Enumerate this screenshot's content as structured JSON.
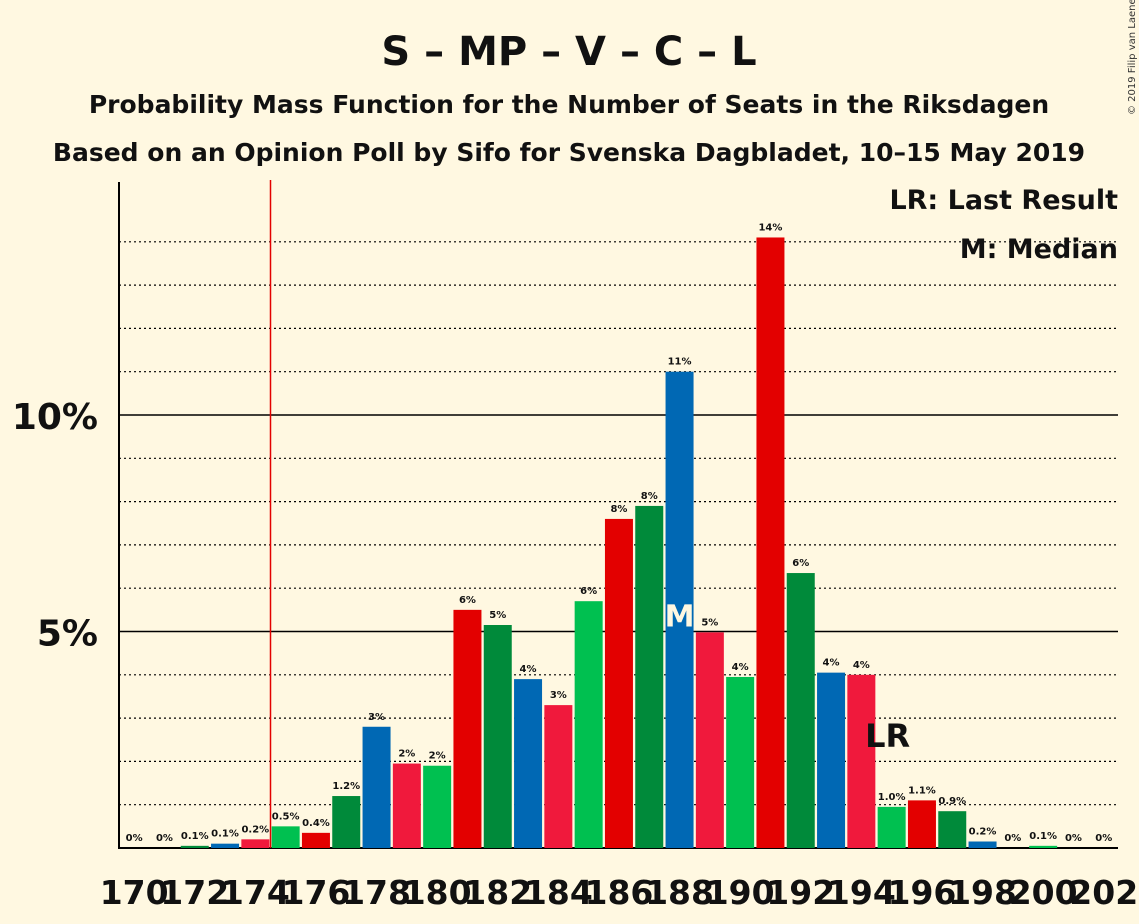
{
  "chart_data": {
    "type": "bar",
    "title": "S – MP – V – C – L",
    "subtitle1": "Probability Mass Function for the Number of Seats in the Riksdagen",
    "subtitle2": "Based on an Opinion Poll by Sifo for Svenska Dagbladet, 10–15 May 2019",
    "copyright": "© 2019 Filip van Laenen",
    "legend_lr": "LR: Last Result",
    "legend_m": "M: Median",
    "legend_position": "top-right",
    "median_marker": "M",
    "last_result_marker": "LR",
    "x": [
      170,
      171,
      172,
      173,
      174,
      175,
      176,
      177,
      178,
      179,
      180,
      181,
      182,
      183,
      184,
      185,
      186,
      187,
      188,
      189,
      190,
      191,
      192,
      193,
      194,
      195,
      196,
      197,
      198,
      199,
      200,
      201,
      202
    ],
    "values": [
      0,
      0,
      0.05,
      0.1,
      0.2,
      0.5,
      0.35,
      1.2,
      2.8,
      1.95,
      1.9,
      5.5,
      5.15,
      3.9,
      3.3,
      5.7,
      7.6,
      7.9,
      11.0,
      4.98,
      3.95,
      14.1,
      6.35,
      4.05,
      4.0,
      0.95,
      1.1,
      0.85,
      0.15,
      0,
      0.05,
      0,
      0
    ],
    "labels": [
      "0%",
      "0%",
      "0.1%",
      "0.1%",
      "0.2%",
      "0.5%",
      "0.4%",
      "1.2%",
      "3%",
      "2%",
      "2%",
      "6%",
      "5%",
      "4%",
      "3%",
      "6%",
      "8%",
      "8%",
      "11%",
      "5%",
      "4%",
      "14%",
      "6%",
      "4%",
      "4%",
      "1.0%",
      "1.1%",
      "0.9%",
      "0.2%",
      "0%",
      "0.1%",
      "0%",
      "0%"
    ],
    "bar_colors": [
      "#00C050",
      "#E30000",
      "#008A3A",
      "#0068B4",
      "#F0193C"
    ],
    "x_tick_labels": [
      "170",
      "172",
      "174",
      "176",
      "178",
      "180",
      "182",
      "184",
      "186",
      "188",
      "190",
      "192",
      "194",
      "196",
      "198",
      "200",
      "202"
    ],
    "x_tick_values": [
      170,
      172,
      174,
      176,
      178,
      180,
      182,
      184,
      186,
      188,
      190,
      192,
      194,
      196,
      198,
      200,
      202
    ],
    "y_tick_labels": [
      "5%",
      "10%"
    ],
    "y_tick_values": [
      5,
      10
    ],
    "ylim": [
      0,
      15.5
    ],
    "median_seat": 188,
    "last_result_seat": 195,
    "majority_line_seat": 174.5,
    "grid": "dotted at every 1%, solid at every 5%"
  }
}
